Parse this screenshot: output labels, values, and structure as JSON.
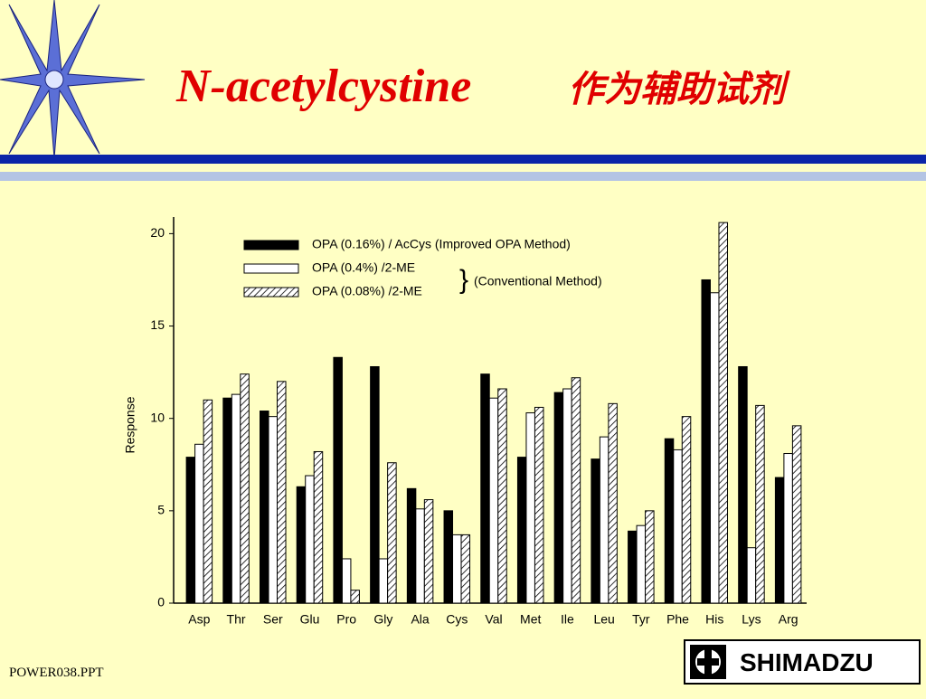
{
  "slide": {
    "title_latin": "N-acetylcystine",
    "title_cn": "作为辅助试剂",
    "footer": "POWER038.PPT",
    "logo": "SHIMADZU"
  },
  "chart_data": {
    "type": "bar",
    "y_label": "Response",
    "categories": [
      "Asp",
      "Thr",
      "Ser",
      "Glu",
      "Pro",
      "Gly",
      "Ala",
      "Cys",
      "Val",
      "Met",
      "Ile",
      "Leu",
      "Tyr",
      "Phe",
      "His",
      "Lys",
      "Arg"
    ],
    "series": [
      {
        "name": "OPA (0.16%) / AcCys (Improved OPA Method)",
        "color": "#000000",
        "hatch": false,
        "values": [
          7.9,
          11.1,
          10.4,
          6.3,
          13.3,
          12.8,
          6.2,
          5.0,
          12.4,
          7.9,
          11.4,
          7.8,
          3.9,
          8.9,
          17.5,
          12.8,
          6.8
        ]
      },
      {
        "name": "OPA (0.4%) /2-ME",
        "color": "#ffffff",
        "hatch": false,
        "values": [
          8.6,
          11.3,
          10.1,
          6.9,
          2.4,
          2.4,
          5.1,
          3.7,
          11.1,
          10.3,
          11.6,
          9.0,
          4.2,
          8.3,
          16.8,
          3.0,
          8.1
        ]
      },
      {
        "name": "OPA (0.08%) /2-ME",
        "color": "#ffffff",
        "hatch": true,
        "values": [
          11.0,
          12.4,
          12.0,
          8.2,
          0.7,
          7.6,
          5.6,
          3.7,
          11.6,
          10.6,
          12.2,
          10.8,
          5.0,
          10.1,
          20.6,
          10.7,
          9.6
        ]
      }
    ],
    "legend_group_label": "(Conventional Method)",
    "ylim": [
      0,
      20.9
    ],
    "yticks": [
      0,
      5,
      10,
      15,
      20
    ]
  }
}
